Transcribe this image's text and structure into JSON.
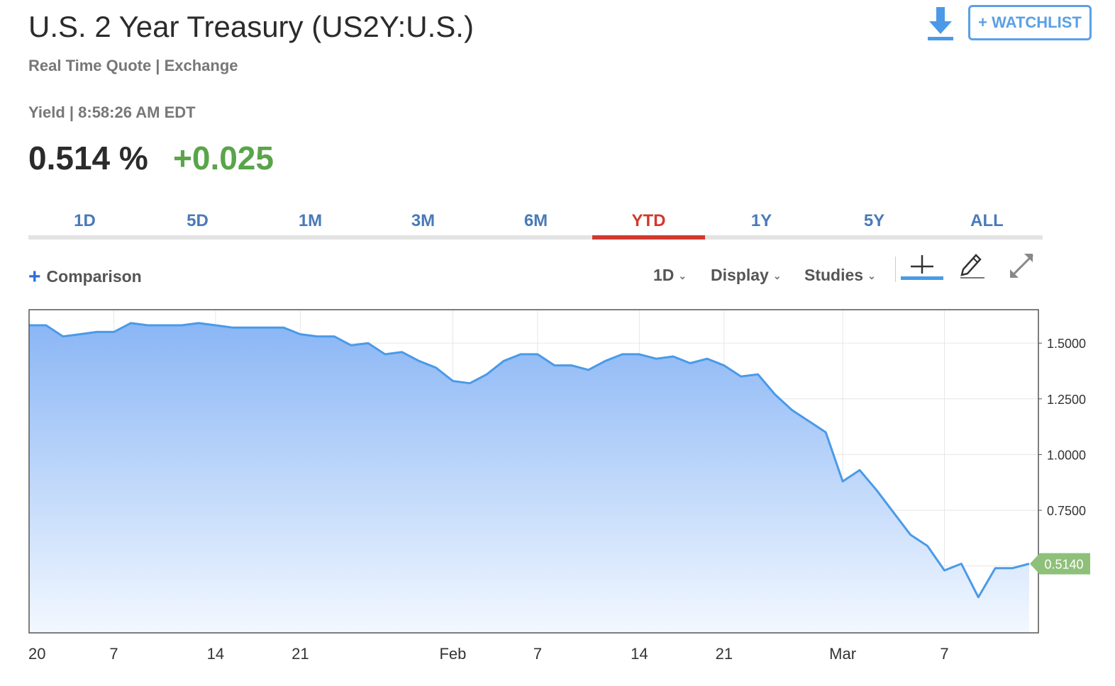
{
  "header": {
    "title": "U.S. 2 Year Treasury (US2Y:U.S.)",
    "subtitle": "Real Time Quote | Exchange",
    "yield_line": "Yield | 8:58:26 AM EDT",
    "price": "0.514 %",
    "change": "+0.025",
    "watchlist_label": "+ WATCHLIST",
    "download_icon": "download-icon",
    "change_color": "#5aa44a"
  },
  "tabs": [
    {
      "label": "1D"
    },
    {
      "label": "5D"
    },
    {
      "label": "1M"
    },
    {
      "label": "3M"
    },
    {
      "label": "6M"
    },
    {
      "label": "YTD",
      "active": true
    },
    {
      "label": "1Y"
    },
    {
      "label": "5Y"
    },
    {
      "label": "ALL"
    }
  ],
  "toolbar": {
    "comparison_label": "Comparison",
    "interval_label": "1D",
    "display_label": "Display",
    "studies_label": "Studies",
    "crosshair_icon": "crosshair-icon",
    "draw_icon": "pencil-icon",
    "expand_icon": "expand-icon"
  },
  "chart_data": {
    "type": "area",
    "line_color": "#4a9ae8",
    "fill_color_top": "#8ab6f5",
    "fill_color_bottom": "#f3f8ff",
    "last_value_color": "#8fc07a",
    "last_value_label": "0.5140",
    "ylim": [
      0.2,
      1.65
    ],
    "yticks": [
      "1.5000",
      "1.2500",
      "1.0000",
      "0.7500"
    ],
    "ytick_values": [
      1.5,
      1.25,
      1.0,
      0.75,
      0.5
    ],
    "xtick_labels": [
      "20",
      "7",
      "14",
      "21",
      "Feb",
      "7",
      "14",
      "21",
      "Mar",
      "7"
    ],
    "xtick_indices": [
      0,
      5,
      11,
      16,
      25,
      30,
      36,
      41,
      48,
      54
    ],
    "values": [
      1.58,
      1.58,
      1.53,
      1.54,
      1.55,
      1.55,
      1.59,
      1.58,
      1.58,
      1.58,
      1.59,
      1.58,
      1.57,
      1.57,
      1.57,
      1.57,
      1.54,
      1.53,
      1.53,
      1.49,
      1.5,
      1.45,
      1.46,
      1.42,
      1.39,
      1.33,
      1.32,
      1.36,
      1.42,
      1.45,
      1.45,
      1.4,
      1.4,
      1.38,
      1.42,
      1.45,
      1.45,
      1.43,
      1.44,
      1.41,
      1.43,
      1.4,
      1.35,
      1.36,
      1.27,
      1.2,
      1.15,
      1.1,
      0.88,
      0.93,
      0.84,
      0.74,
      0.64,
      0.59,
      0.48,
      0.51,
      0.36,
      0.49,
      0.49,
      0.51
    ]
  }
}
